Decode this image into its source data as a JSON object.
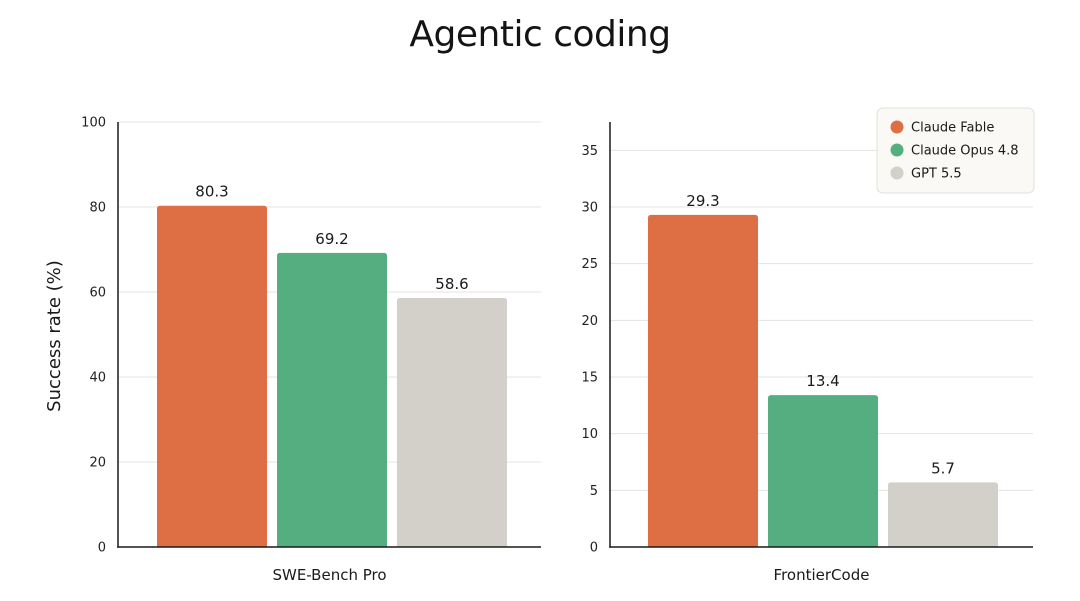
{
  "title": "Agentic coding",
  "legend": [
    {
      "name": "Claude Fable",
      "color": "#DE6F45"
    },
    {
      "name": "Claude Opus 4.8",
      "color": "#55AE80"
    },
    {
      "name": "GPT 5.5",
      "color": "#D2D0C8"
    }
  ],
  "legend_placement": "top-right of second panel",
  "ylabel": "Success rate (%)",
  "chart_data": [
    {
      "type": "bar",
      "xlabel": "SWE-Bench Pro",
      "ylabel": "Success rate (%)",
      "categories": [
        "Claude Fable",
        "Claude Opus 4.8",
        "GPT 5.5"
      ],
      "values": [
        80.3,
        69.2,
        58.6
      ],
      "value_labels": [
        "80.3",
        "69.2",
        "58.6"
      ],
      "colors": [
        "#DE6F45",
        "#55AE80",
        "#D2D0C8"
      ],
      "ylim": [
        0,
        100
      ],
      "yticks": [
        0,
        20,
        40,
        60,
        80,
        100
      ],
      "ytick_labels": [
        "0",
        "20",
        "40",
        "60",
        "80",
        "100"
      ],
      "grid": true
    },
    {
      "type": "bar",
      "xlabel": "FrontierCode",
      "ylabel": "",
      "categories": [
        "Claude Fable",
        "Claude Opus 4.8",
        "GPT 5.5"
      ],
      "values": [
        29.3,
        13.4,
        5.7
      ],
      "value_labels": [
        "29.3",
        "13.4",
        "5.7"
      ],
      "colors": [
        "#DE6F45",
        "#55AE80",
        "#D2D0C8"
      ],
      "ylim": [
        0,
        37.5
      ],
      "yticks": [
        0,
        5,
        10,
        15,
        20,
        25,
        30,
        35
      ],
      "ytick_labels": [
        "0",
        "5",
        "10",
        "15",
        "20",
        "25",
        "30",
        "35"
      ],
      "grid": true
    }
  ]
}
